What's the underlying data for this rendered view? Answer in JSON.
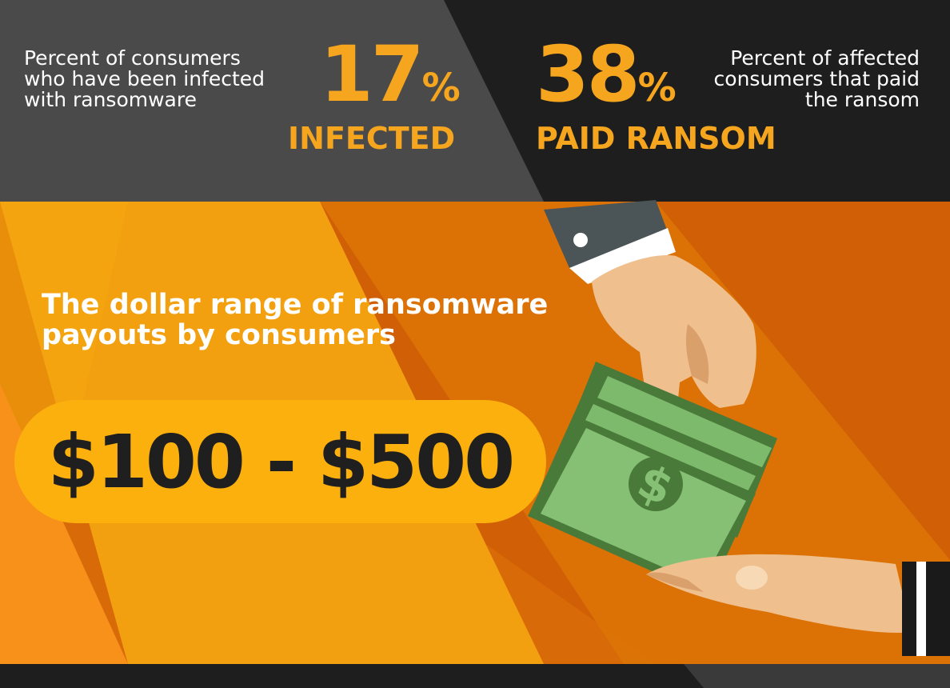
{
  "stats": {
    "infected": {
      "description": "Percent of consumers who have been infected with ransomware",
      "number": "17",
      "percent_sign": "%",
      "label": "INFECTED"
    },
    "paid": {
      "description": "Percent of affected consumers that paid the ransom",
      "number": "38",
      "percent_sign": "%",
      "label": "PAID RANSOM"
    }
  },
  "payout": {
    "heading": "The dollar range of ransomware payouts by consumers",
    "range": "$100 - $500"
  },
  "illustration": {
    "icons": [
      "hand-giving-money-icon",
      "dollar-bills-icon",
      "dollar-sign-icon",
      "receiving-hand-icon"
    ]
  },
  "colors": {
    "accent": "#f5a51e",
    "pill": "#fbb00e",
    "dark_gray": "#4a4a4a",
    "dark": "#1e1e1e",
    "orange": "#e07a0c",
    "money_green": "#7dba6c"
  }
}
